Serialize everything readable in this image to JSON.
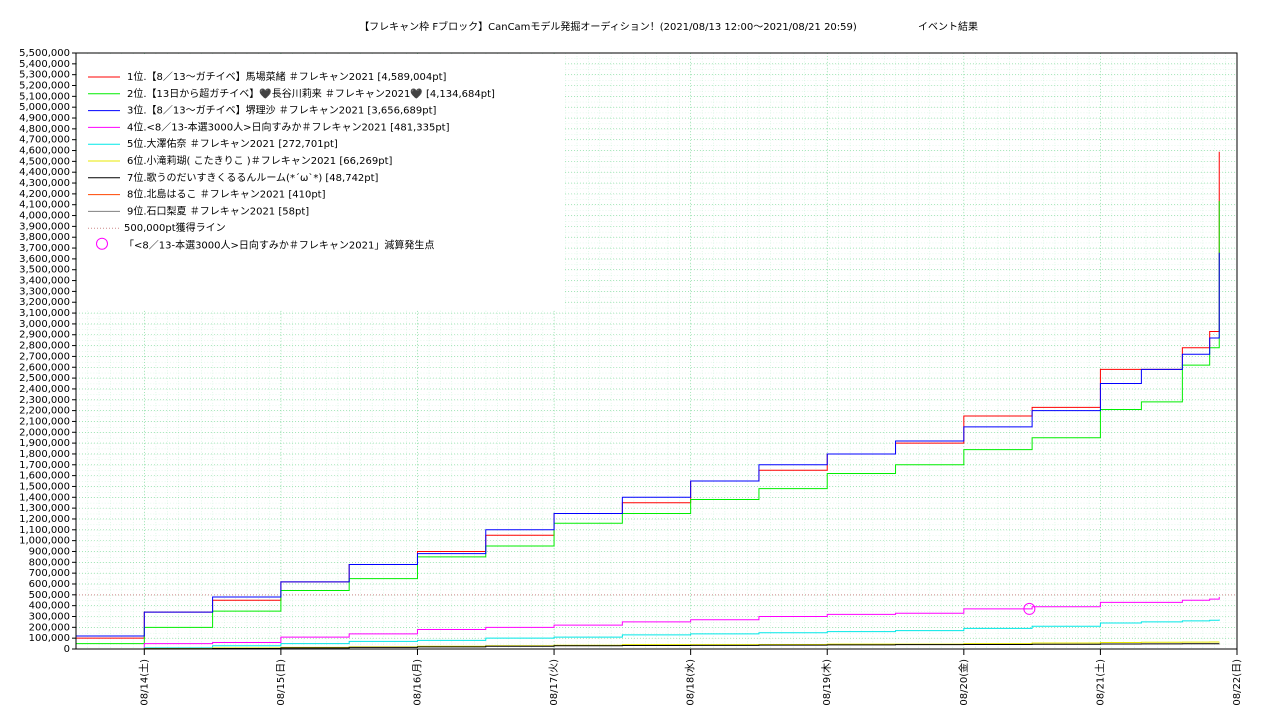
{
  "chart_data": {
    "type": "step-line",
    "title": "【フレキャン枠 Fブロック】CanCamモデル発掘オーディション！(2021/08/13 12:00〜2021/08/21 20:59)",
    "subtitle": "イベント結果",
    "x": [
      0.5,
      1,
      1.5,
      2,
      2.5,
      3,
      3.5,
      4,
      4.5,
      5,
      5.5,
      6,
      6.5,
      7,
      7.5,
      8,
      8.3,
      8.6,
      8.8,
      8.87
    ],
    "xlim": [
      0.5,
      9
    ],
    "xticks": [
      {
        "value": 1,
        "label": "08/14(土)"
      },
      {
        "value": 2,
        "label": "08/15(日)"
      },
      {
        "value": 3,
        "label": "08/16(月)"
      },
      {
        "value": 4,
        "label": "08/17(火)"
      },
      {
        "value": 5,
        "label": "08/18(水)"
      },
      {
        "value": 6,
        "label": "08/19(木)"
      },
      {
        "value": 7,
        "label": "08/20(金)"
      },
      {
        "value": 8,
        "label": "08/21(土)"
      },
      {
        "value": 9,
        "label": "08/22(日)"
      }
    ],
    "ylim": [
      0,
      5500000
    ],
    "yticks": [
      0,
      {
        "value": 100000,
        "label": "100,000"
      },
      {
        "value": 200000,
        "label": "200,000"
      },
      {
        "value": 300000,
        "label": "300,000"
      },
      {
        "value": 400000,
        "label": "400,000"
      },
      {
        "value": 500000,
        "label": "500,000"
      },
      {
        "value": 600000,
        "label": "600,000"
      },
      {
        "value": 700000,
        "label": "700,000"
      },
      {
        "value": 800000,
        "label": "800,000"
      },
      {
        "value": 900000,
        "label": "900,000"
      },
      {
        "value": 1000000,
        "label": "1,000,000"
      },
      {
        "value": 1100000,
        "label": "1,100,000"
      },
      {
        "value": 1200000,
        "label": "1,200,000"
      },
      {
        "value": 1300000,
        "label": "1,300,000"
      },
      {
        "value": 1400000,
        "label": "1,400,000"
      },
      {
        "value": 1500000,
        "label": "1,500,000"
      },
      {
        "value": 1600000,
        "label": "1,600,000"
      },
      {
        "value": 1700000,
        "label": "1,700,000"
      },
      {
        "value": 1800000,
        "label": "1,800,000"
      },
      {
        "value": 1900000,
        "label": "1,900,000"
      },
      {
        "value": 2000000,
        "label": "2,000,000"
      },
      {
        "value": 2100000,
        "label": "2,100,000"
      },
      {
        "value": 2200000,
        "label": "2,200,000"
      },
      {
        "value": 2300000,
        "label": "2,300,000"
      },
      {
        "value": 2400000,
        "label": "2,400,000"
      },
      {
        "value": 2500000,
        "label": "2,500,000"
      },
      {
        "value": 2600000,
        "label": "2,600,000"
      },
      {
        "value": 2700000,
        "label": "2,700,000"
      },
      {
        "value": 2800000,
        "label": "2,800,000"
      },
      {
        "value": 2900000,
        "label": "2,900,000"
      },
      {
        "value": 3000000,
        "label": "3,000,000"
      },
      {
        "value": 3100000,
        "label": "3,100,000"
      },
      {
        "value": 3200000,
        "label": "3,200,000"
      },
      {
        "value": 3300000,
        "label": "3,300,000"
      },
      {
        "value": 3400000,
        "label": "3,400,000"
      },
      {
        "value": 3500000,
        "label": "3,500,000"
      },
      {
        "value": 3600000,
        "label": "3,600,000"
      },
      {
        "value": 3700000,
        "label": "3,700,000"
      },
      {
        "value": 3800000,
        "label": "3,800,000"
      },
      {
        "value": 3900000,
        "label": "3,900,000"
      },
      {
        "value": 4000000,
        "label": "4,000,000"
      },
      {
        "value": 4100000,
        "label": "4,100,000"
      },
      {
        "value": 4200000,
        "label": "4,200,000"
      },
      {
        "value": 4300000,
        "label": "4,300,000"
      },
      {
        "value": 4400000,
        "label": "4,400,000"
      },
      {
        "value": 4500000,
        "label": "4,500,000"
      },
      {
        "value": 4600000,
        "label": "4,600,000"
      },
      {
        "value": 4700000,
        "label": "4,700,000"
      },
      {
        "value": 4800000,
        "label": "4,800,000"
      },
      {
        "value": 4900000,
        "label": "4,900,000"
      },
      {
        "value": 5000000,
        "label": "5,000,000"
      },
      {
        "value": 5100000,
        "label": "5,100,000"
      },
      {
        "value": 5200000,
        "label": "5,200,000"
      },
      {
        "value": 5300000,
        "label": "5,300,000"
      },
      {
        "value": 5400000,
        "label": "5,400,000"
      },
      {
        "value": 5500000,
        "label": "5,500,000"
      }
    ],
    "grid": true,
    "legend": "top-left",
    "series": [
      {
        "name": "1位.【8／13〜ガチイベ】馬場菜緒 ＃フレキャン2021 [4,589,004pt]",
        "color": "#ff0000",
        "values": [
          100000,
          340000,
          450000,
          620000,
          780000,
          900000,
          1050000,
          1250000,
          1350000,
          1550000,
          1650000,
          1800000,
          1900000,
          2150000,
          2230000,
          2580000,
          2580000,
          2780000,
          2930000,
          4589004
        ]
      },
      {
        "name": "2位.【13日から超ガチイベ】🖤長谷川莉来 ＃フレキャン2021🖤 [4,134,684pt]",
        "color": "#00ee00",
        "values": [
          50000,
          200000,
          350000,
          540000,
          650000,
          850000,
          950000,
          1160000,
          1250000,
          1380000,
          1480000,
          1620000,
          1700000,
          1840000,
          1950000,
          2210000,
          2280000,
          2620000,
          2780000,
          4134684
        ]
      },
      {
        "name": "3位.【8／13〜ガチイベ】堺理沙 ＃フレキャン2021 [3,656,689pt]",
        "color": "#0000ff",
        "values": [
          120000,
          340000,
          480000,
          620000,
          780000,
          880000,
          1100000,
          1250000,
          1400000,
          1550000,
          1700000,
          1800000,
          1920000,
          2050000,
          2200000,
          2450000,
          2580000,
          2720000,
          2870000,
          3656689
        ]
      },
      {
        "name": "4位.<8／13-本選3000人>日向すみか＃フレキャン2021 [481,335pt]",
        "color": "#ff00ff",
        "values": [
          0,
          50000,
          60000,
          110000,
          140000,
          180000,
          200000,
          220000,
          250000,
          270000,
          300000,
          320000,
          330000,
          370000,
          390000,
          430000,
          430000,
          450000,
          460000,
          481335
        ]
      },
      {
        "name": "5位.大澤佑奈 ＃フレキャン2021 [272,701pt]",
        "color": "#00e8e8",
        "values": [
          0,
          10000,
          30000,
          50000,
          70000,
          80000,
          100000,
          110000,
          130000,
          140000,
          150000,
          160000,
          170000,
          190000,
          210000,
          240000,
          250000,
          260000,
          265000,
          272701
        ]
      },
      {
        "name": "6位.小滝莉瑚( こたきりこ )＃フレキャン2021 [66,269pt]",
        "color": "#e8e800",
        "values": [
          0,
          5000,
          10000,
          15000,
          20000,
          25000,
          30000,
          35000,
          40000,
          40000,
          42000,
          45000,
          45000,
          50000,
          55000,
          60000,
          62000,
          64000,
          65000,
          66269
        ]
      },
      {
        "name": "7位.歌うのだいすきくるるんルーム(*´ω`*) [48,742pt]",
        "color": "#000000",
        "values": [
          0,
          2000,
          5000,
          10000,
          15000,
          20000,
          25000,
          30000,
          32000,
          34000,
          36000,
          38000,
          40000,
          42000,
          44000,
          46000,
          47000,
          48000,
          48500,
          48742
        ]
      },
      {
        "name": "8位.北島はるこ ＃フレキャン2021 [410pt]",
        "color": "#ff4500",
        "values": [
          0,
          50,
          100,
          150,
          200,
          250,
          300,
          320,
          340,
          350,
          360,
          370,
          380,
          390,
          400,
          405,
          408,
          410,
          410,
          410
        ]
      },
      {
        "name": "9位.石口梨夏 ＃フレキャン2021 [58pt]",
        "color": "#808080",
        "values": [
          0,
          5,
          10,
          15,
          20,
          25,
          30,
          35,
          38,
          40,
          42,
          45,
          48,
          50,
          52,
          54,
          56,
          57,
          58,
          58
        ]
      }
    ],
    "reference_line": {
      "name": "500,000pt獲得ライン",
      "value": 500000,
      "color": "#cc8888"
    },
    "marker": {
      "name": "「<8／13-本選3000人>日向すみか＃フレキャン2021」減算発生点",
      "x": 7.48,
      "y": 370000,
      "color": "#ff00ff"
    }
  }
}
